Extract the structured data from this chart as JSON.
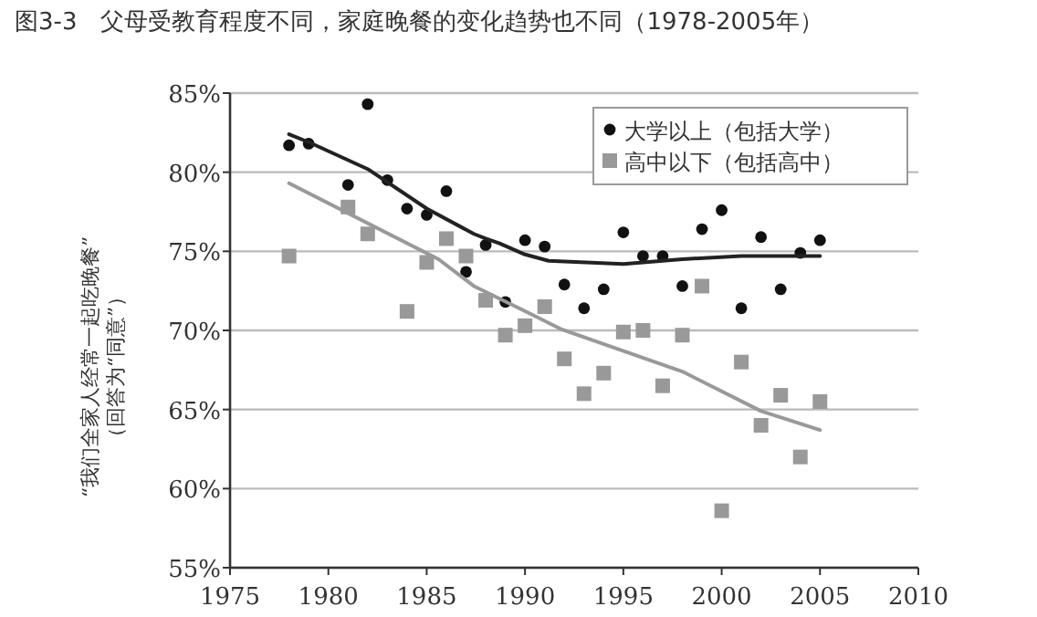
{
  "chart_data": {
    "type": "scatter",
    "title": "图3-3　父母受教育程度不同，家庭晚餐的变化趋势也不同（1978-2005年）",
    "ylabel": "“我们全家人经常一起吃晚餐”（回答为“同意”）",
    "xlim": [
      1975,
      2010
    ],
    "xticks": [
      1975,
      1980,
      1985,
      1990,
      1995,
      2000,
      2005,
      2010
    ],
    "ylim": [
      55,
      85
    ],
    "yticks": [
      {
        "value": 55,
        "label": "55%"
      },
      {
        "value": 60,
        "label": "60%"
      },
      {
        "value": 65,
        "label": "65%"
      },
      {
        "value": 70,
        "label": "70%"
      },
      {
        "value": 75,
        "label": "75%"
      },
      {
        "value": 80,
        "label": "80%"
      },
      {
        "value": 85,
        "label": "85%"
      }
    ],
    "grid": "y",
    "legend": "top right",
    "series": [
      {
        "name": "大学以上（包括大学）",
        "marker": "circle",
        "color": "#111111",
        "x": [
          1978,
          1979,
          1981,
          1982,
          1983,
          1984,
          1985,
          1986,
          1987,
          1988,
          1989,
          1990,
          1991,
          1992,
          1993,
          1994,
          1995,
          1996,
          1997,
          1998,
          1999,
          2000,
          2001,
          2002,
          2003,
          2004,
          2005
        ],
        "values": [
          81.7,
          81.8,
          79.2,
          84.3,
          79.5,
          77.7,
          77.3,
          78.8,
          73.7,
          75.4,
          71.8,
          75.7,
          75.3,
          72.9,
          71.4,
          72.6,
          76.2,
          74.7,
          74.7,
          72.8,
          76.4,
          77.6,
          71.4,
          75.9,
          72.6,
          74.9,
          75.7
        ]
      },
      {
        "name": "高中以下（包括高中）",
        "marker": "square",
        "color": "#999999",
        "x": [
          1978,
          1981,
          1982,
          1984,
          1985,
          1986,
          1987,
          1988,
          1989,
          1990,
          1991,
          1992,
          1993,
          1994,
          1995,
          1996,
          1997,
          1998,
          1999,
          2000,
          2001,
          2002,
          2003,
          2004,
          2005
        ],
        "values": [
          74.7,
          77.8,
          76.1,
          71.2,
          74.3,
          75.8,
          74.7,
          71.9,
          69.7,
          70.3,
          71.5,
          68.2,
          66.0,
          67.3,
          69.9,
          70.0,
          66.5,
          69.7,
          72.8,
          58.6,
          68.0,
          64.0,
          65.9,
          62.0,
          65.5
        ]
      },
      {
        "type": "line",
        "color": "#222222",
        "x": [
          1978,
          1979,
          1982,
          1985,
          1987.4,
          1988,
          1988.7,
          1990,
          1991.2,
          1995,
          1998,
          2001,
          2005
        ],
        "values": [
          82.4,
          81.9,
          80.2,
          77.7,
          76.1,
          75.8,
          75.5,
          74.8,
          74.4,
          74.2,
          74.5,
          74.7,
          74.7
        ]
      },
      {
        "type": "line",
        "color": "#999999",
        "x": [
          1978,
          1985.6,
          1987.4,
          1990.2,
          1991.8,
          1998,
          2002,
          2005
        ],
        "values": [
          79.3,
          74.5,
          72.8,
          71.1,
          70.1,
          67.4,
          64.9,
          63.7
        ]
      }
    ]
  }
}
